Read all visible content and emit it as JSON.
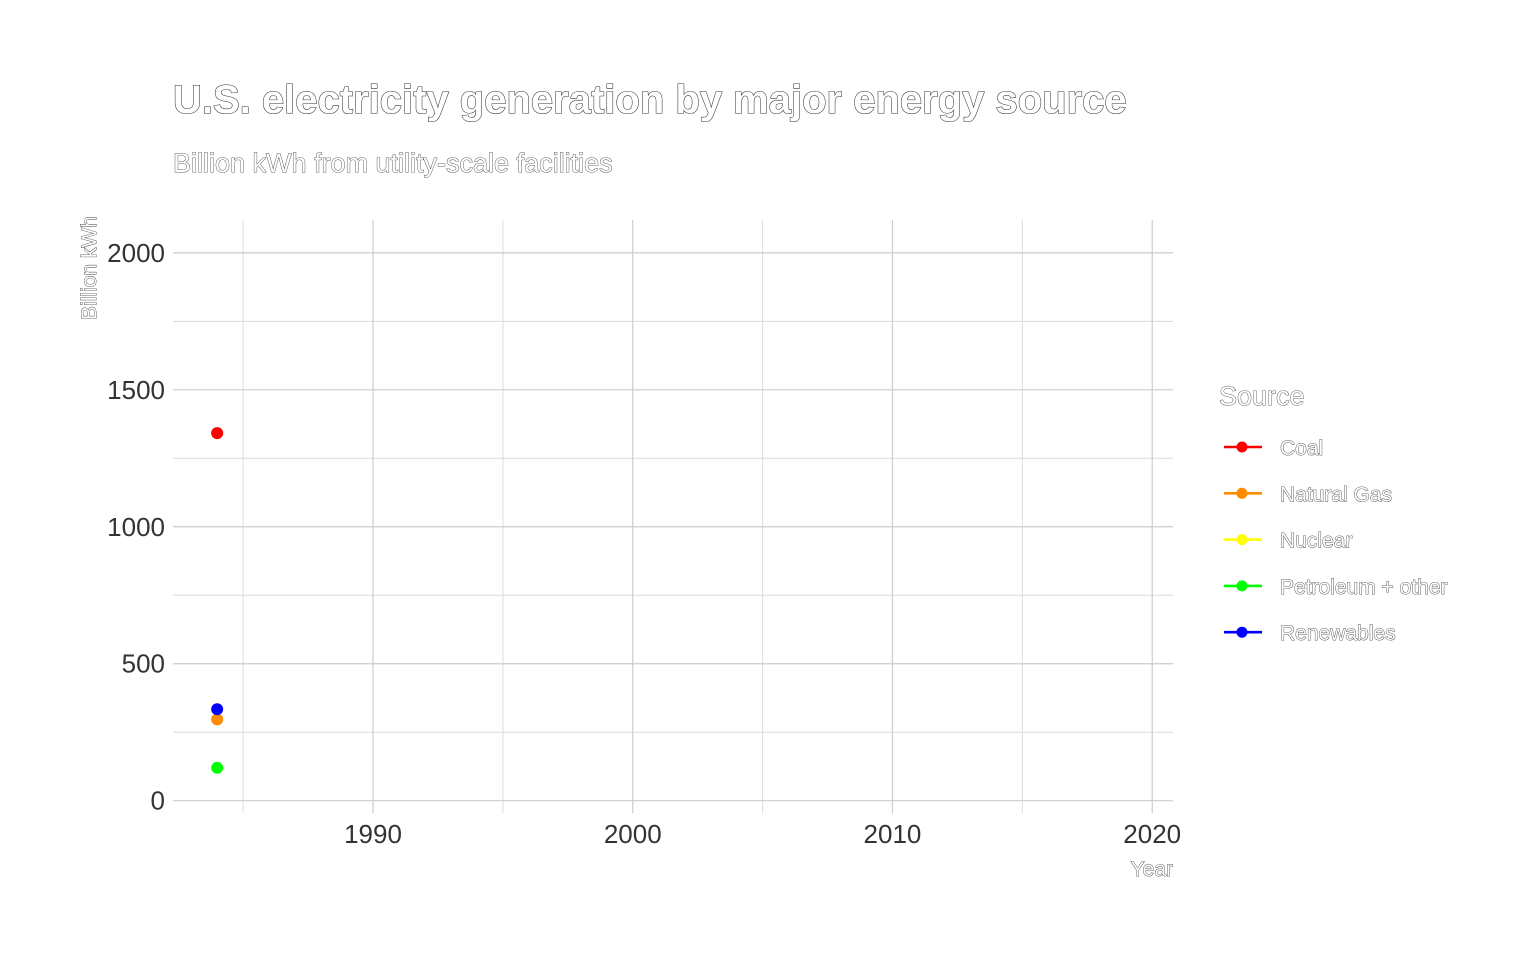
{
  "chart_data": {
    "type": "line",
    "title": "U.S. electricity generation by major energy source",
    "subtitle": "Billion kWh from utility-scale facilities",
    "xlabel": "Year",
    "ylabel": "Billion kWh",
    "xlim": [
      1982.3,
      2020.8
    ],
    "ylim": [
      -45,
      2120
    ],
    "x_ticks": [
      1990,
      2000,
      2010,
      2020
    ],
    "y_ticks": [
      0,
      500,
      1000,
      1500,
      2000
    ],
    "grid": true,
    "legend_title": "Source",
    "legend_position": "right",
    "series": [
      {
        "name": "Coal",
        "color": "#ff0000",
        "points": [
          {
            "x": 1984,
            "y": 1342
          }
        ]
      },
      {
        "name": "Natural Gas",
        "color": "#ff8c00",
        "points": [
          {
            "x": 1984,
            "y": 297
          }
        ]
      },
      {
        "name": "Nuclear",
        "color": "#ffff00",
        "points": []
      },
      {
        "name": "Petroleum + other",
        "color": "#00ff00",
        "points": [
          {
            "x": 1984,
            "y": 120
          }
        ]
      },
      {
        "name": "Renewables",
        "color": "#0000ff",
        "points": [
          {
            "x": 1984,
            "y": 334
          }
        ]
      }
    ]
  }
}
